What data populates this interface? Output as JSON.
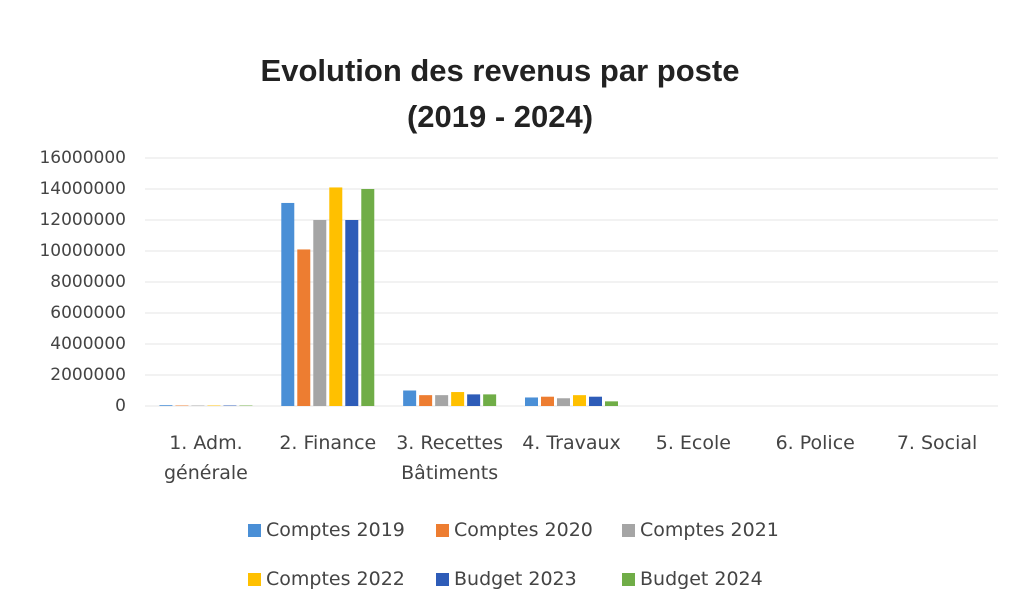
{
  "chart_data": {
    "type": "bar",
    "title": "Evolution des revenus par poste\n(2019 - 2024)",
    "categories": [
      "1. Adm.\ngénérale",
      "2. Finance",
      "3. Recettes\nBâtiments",
      "4. Travaux",
      "5. Ecole",
      "6. Police",
      "7. Social"
    ],
    "series": [
      {
        "name": "Comptes 2019",
        "color": "#4a8fd6",
        "values": [
          50000,
          13100000,
          1000000,
          550000,
          0,
          0,
          0
        ]
      },
      {
        "name": "Comptes 2020",
        "color": "#ed7d31",
        "values": [
          30000,
          10100000,
          700000,
          600000,
          0,
          0,
          0
        ]
      },
      {
        "name": "Comptes 2021",
        "color": "#a5a5a5",
        "values": [
          30000,
          12000000,
          700000,
          500000,
          0,
          0,
          0
        ]
      },
      {
        "name": "Comptes 2022",
        "color": "#ffc000",
        "values": [
          30000,
          14100000,
          900000,
          700000,
          0,
          0,
          0
        ]
      },
      {
        "name": "Budget 2023",
        "color": "#2e5cb8",
        "values": [
          30000,
          12000000,
          750000,
          600000,
          0,
          0,
          0
        ]
      },
      {
        "name": "Budget 2024",
        "color": "#70ad47",
        "values": [
          30000,
          14000000,
          750000,
          300000,
          0,
          0,
          0
        ]
      }
    ],
    "ylim": [
      0,
      16000000
    ],
    "yticks": [
      0,
      2000000,
      4000000,
      6000000,
      8000000,
      10000000,
      12000000,
      14000000,
      16000000
    ],
    "grid": true,
    "legend": "bottom"
  }
}
